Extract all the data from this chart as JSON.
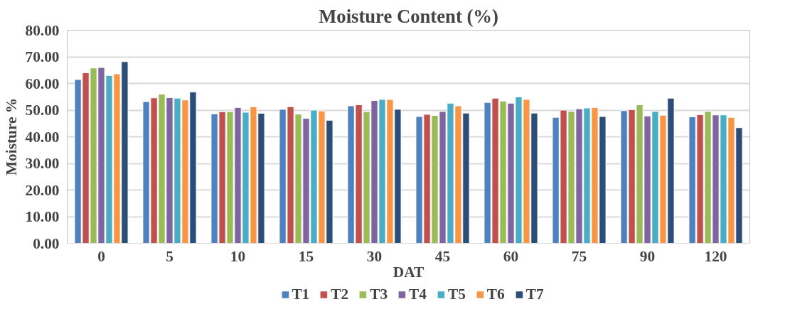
{
  "chart_data": {
    "type": "bar",
    "title": "Moisture Content (%)",
    "xlabel": "DAT",
    "ylabel": "Moisture %",
    "categories": [
      "0",
      "5",
      "10",
      "15",
      "30",
      "45",
      "60",
      "75",
      "90",
      "120"
    ],
    "series": [
      {
        "name": "T1",
        "color": "#4f81bd",
        "values": [
          61.5,
          53.2,
          48.6,
          50.3,
          51.6,
          47.6,
          52.9,
          47.3,
          49.8,
          47.5
        ]
      },
      {
        "name": "T2",
        "color": "#c0504d",
        "values": [
          64.0,
          54.6,
          49.4,
          51.3,
          52.0,
          48.4,
          54.5,
          50.0,
          50.2,
          48.3
        ]
      },
      {
        "name": "T3",
        "color": "#9bbb59",
        "values": [
          65.8,
          56.0,
          49.4,
          48.5,
          49.4,
          48.0,
          53.4,
          49.5,
          52.0,
          49.5
        ]
      },
      {
        "name": "T4",
        "color": "#8064a2",
        "values": [
          66.0,
          54.7,
          51.0,
          46.9,
          53.6,
          49.5,
          52.6,
          50.5,
          47.8,
          48.2
        ]
      },
      {
        "name": "T5",
        "color": "#4bacc6",
        "values": [
          63.0,
          54.5,
          49.2,
          50.0,
          54.0,
          52.6,
          55.0,
          50.8,
          49.5,
          48.2
        ]
      },
      {
        "name": "T6",
        "color": "#f79646",
        "values": [
          63.6,
          53.8,
          51.3,
          49.7,
          54.0,
          51.6,
          54.0,
          51.0,
          48.1,
          47.3
        ]
      },
      {
        "name": "T7",
        "color": "#2c4d75",
        "values": [
          68.2,
          56.8,
          48.8,
          46.2,
          50.3,
          48.9,
          48.9,
          47.6,
          54.5,
          43.4
        ]
      }
    ],
    "ylim": [
      0,
      80
    ],
    "yticks": [
      {
        "value": 0,
        "label": "0.00"
      },
      {
        "value": 10,
        "label": "10.00"
      },
      {
        "value": 20,
        "label": "20.00"
      },
      {
        "value": 30,
        "label": "30.00"
      },
      {
        "value": 40,
        "label": "40.00"
      },
      {
        "value": 50,
        "label": "50.00"
      },
      {
        "value": 60,
        "label": "60.00"
      },
      {
        "value": 70,
        "label": "70.00"
      },
      {
        "value": 80,
        "label": "80.00"
      }
    ],
    "grid": "y",
    "legend": "bottom"
  }
}
